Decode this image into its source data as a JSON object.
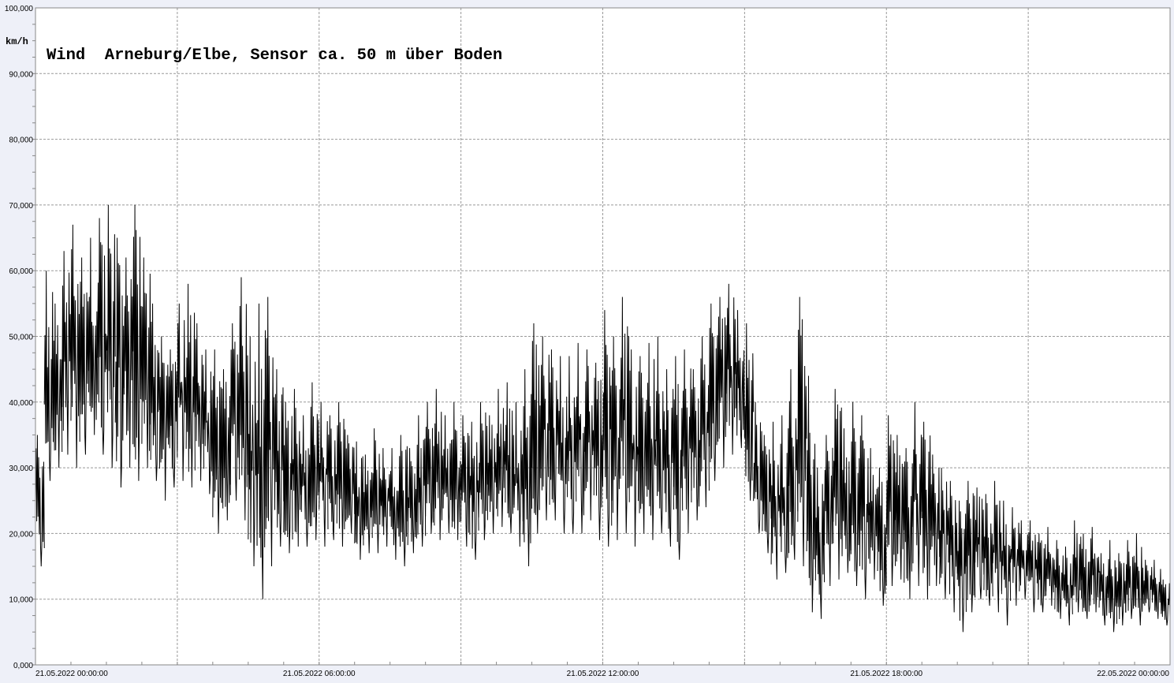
{
  "chart_data": {
    "type": "line",
    "title": "Wind  Arneburg/Elbe, Sensor ca. 50 m über Boden",
    "ylabel": "km/h",
    "xlabel": "",
    "ylim": [
      0,
      100000
    ],
    "xlim": [
      "21.05.2022 00:00:00",
      "22.05.2022 00:00:00"
    ],
    "yticks": [
      "0,000",
      "10,000",
      "20,000",
      "30,000",
      "40,000",
      "50,000",
      "60,000",
      "70,000",
      "80,000",
      "90,000",
      "100,000"
    ],
    "xticks": [
      "21.05.2022  00:00:00",
      "21.05.2022  06:00:00",
      "21.05.2022  12:00:00",
      "21.05.2022  18:00:00",
      "22.05.2022  00:00:00"
    ],
    "grid": true,
    "line_color": "#000000",
    "series": [
      {
        "min": [
          15,
          28,
          30,
          32,
          30,
          32,
          35,
          32,
          30,
          27,
          30,
          28,
          30,
          28,
          25,
          27,
          28,
          27,
          28,
          26,
          20,
          22,
          25,
          22,
          15,
          10,
          15,
          18,
          17,
          18,
          18,
          19,
          18,
          19,
          18,
          20,
          16,
          17,
          17,
          18,
          16,
          15,
          17,
          18,
          20,
          19,
          20,
          19,
          18,
          16,
          19,
          20,
          21,
          20,
          18,
          15,
          20,
          22,
          22,
          20,
          20,
          20,
          22,
          19,
          18,
          19,
          20,
          18,
          20,
          19,
          20,
          18,
          16,
          20,
          22,
          24,
          28,
          30,
          32,
          33,
          25,
          20,
          17,
          13,
          14,
          16,
          15,
          8,
          7,
          12,
          13,
          14,
          12,
          10,
          13,
          9,
          12,
          13,
          10,
          12,
          10,
          12,
          10,
          8,
          5,
          8,
          10,
          9,
          8,
          6,
          9,
          10,
          8,
          8,
          9,
          7,
          6,
          8,
          7,
          8,
          6,
          5,
          6,
          7,
          6,
          8,
          7,
          6
        ],
        "max": [
          35,
          60,
          55,
          63,
          67,
          62,
          65,
          68,
          70,
          65,
          62,
          70,
          62,
          55,
          50,
          48,
          55,
          58,
          52,
          48,
          48,
          45,
          52,
          59,
          50,
          55,
          56,
          45,
          40,
          42,
          38,
          43,
          40,
          38,
          40,
          35,
          34,
          32,
          36,
          33,
          33,
          35,
          33,
          38,
          40,
          42,
          38,
          40,
          38,
          37,
          40,
          38,
          42,
          43,
          40,
          45,
          52,
          50,
          48,
          47,
          47,
          49,
          48,
          46,
          54,
          50,
          56,
          48,
          47,
          49,
          50,
          45,
          47,
          48,
          45,
          50,
          55,
          56,
          58,
          54,
          52,
          40,
          35,
          37,
          38,
          45,
          56,
          44,
          30,
          35,
          42,
          36,
          40,
          38,
          33,
          30,
          38,
          35,
          33,
          40,
          37,
          32,
          30,
          28,
          25,
          28,
          27,
          26,
          28,
          25,
          24,
          22,
          22,
          20,
          21,
          19,
          18,
          22,
          20,
          21,
          17,
          19,
          17,
          19,
          20,
          16,
          16,
          13
        ]
      }
    ]
  }
}
